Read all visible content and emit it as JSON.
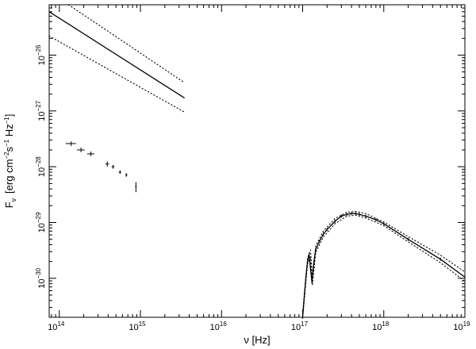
{
  "chart_data": {
    "type": "scatter",
    "xlabel": "ν [Hz]",
    "ylabel": "F_ν [erg cm⁻² s⁻¹ Hz⁻¹]",
    "ylabel_parts": {
      "main": "F",
      "sub": "ν",
      "unit": "[erg cm",
      "e1": "−2",
      "mid": "s",
      "e2": "−1",
      "mid2": " Hz",
      "e3": "−1",
      "end": "]"
    },
    "x_scale": "log",
    "y_scale": "log",
    "xlim": [
      75000000000000.0,
      1e+19
    ],
    "ylim": [
      2e-31,
      8e-26
    ],
    "x_ticks": [
      {
        "value": 100000000000000.0,
        "base": "10",
        "exp": "14"
      },
      {
        "value": 1000000000000000.0,
        "base": "10",
        "exp": "15"
      },
      {
        "value": 1e+16,
        "base": "10",
        "exp": "16"
      },
      {
        "value": 1e+17,
        "base": "10",
        "exp": "17"
      },
      {
        "value": 1e+18,
        "base": "10",
        "exp": "18"
      },
      {
        "value": 1e+19,
        "base": "10",
        "exp": "19"
      }
    ],
    "y_ticks": [
      {
        "value": 1e-30,
        "base": "10",
        "exp": "−30"
      },
      {
        "value": 1e-29,
        "base": "10",
        "exp": "−29"
      },
      {
        "value": 1e-28,
        "base": "10",
        "exp": "−28"
      },
      {
        "value": 1e-27,
        "base": "10",
        "exp": "−27"
      },
      {
        "value": 1e-26,
        "base": "10",
        "exp": "−26"
      }
    ],
    "grid": false,
    "series": [
      {
        "style": "solid",
        "x": [
          75000000000000.0,
          3500000000000000.0
        ],
        "y": [
          6e-26,
          1.7e-27
        ]
      },
      {
        "style": "dotted",
        "x": [
          130000000000000.0,
          3500000000000000.0
        ],
        "y": [
          8e-26,
          3.2e-27
        ]
      },
      {
        "style": "dotted",
        "x": [
          75000000000000.0,
          3500000000000000.0
        ],
        "y": [
          2.2e-26,
          9.5e-28
        ]
      },
      {
        "style": "errorbar",
        "points": [
          {
            "x": 140000000000000.0,
            "y": 2.6e-28,
            "xerr": [
              120000000000000.0,
              160000000000000.0
            ],
            "yerr": [
              2.35e-28,
              2.85e-28
            ]
          },
          {
            "x": 185000000000000.0,
            "y": 2e-28,
            "xerr": [
              165000000000000.0,
              205000000000000.0
            ],
            "yerr": [
              1.82e-28,
              2.2e-28
            ]
          },
          {
            "x": 245000000000000.0,
            "y": 1.7e-28,
            "xerr": [
              220000000000000.0,
              270000000000000.0
            ],
            "yerr": [
              1.55e-28,
              1.87e-28
            ]
          },
          {
            "x": 390000000000000.0,
            "y": 1.12e-28,
            "xerr": [
              370000000000000.0,
              410000000000000.0
            ],
            "yerr": [
              1e-28,
              1.24e-28
            ]
          },
          {
            "x": 460000000000000.0,
            "y": 1e-28,
            "xerr": [
              440000000000000.0,
              480000000000000.0
            ],
            "yerr": [
              9.2e-29,
              1.08e-28
            ]
          },
          {
            "x": 560000000000000.0,
            "y": 8e-29,
            "xerr": [
              540000000000000.0,
              580000000000000.0
            ],
            "yerr": [
              7.4e-29,
              8.6e-29
            ]
          },
          {
            "x": 670000000000000.0,
            "y": 7.1e-29,
            "xerr": [
              650000000000000.0,
              690000000000000.0
            ],
            "yerr": [
              6.6e-29,
              7.7e-29
            ]
          },
          {
            "x": 880000000000000.0,
            "y": 4.4e-29,
            "xerr": [
              860000000000000.0,
              900000000000000.0
            ],
            "yerr": [
              3.5e-29,
              5.3e-29
            ]
          }
        ]
      },
      {
        "style": "solid",
        "x": [
          1e+17,
          1.05e+17,
          1.1e+17,
          1.15e+17,
          1.2e+17,
          1.25e+17,
          1.3e+17,
          1.37e+17,
          1.45e+17,
          1.6e+17,
          1.8e+17,
          2e+17,
          2.5e+17,
          3e+17,
          3.5e+17,
          4e+17,
          4.5e+17,
          5e+17,
          6e+17,
          8e+17,
          1e+18,
          2e+18,
          5e+18,
          1e+19
        ],
        "y": [
          2e-31,
          5e-31,
          1.1e-30,
          2e-30,
          2.7e-30,
          1.5e-30,
          8.5e-31,
          1.9e-30,
          3.3e-30,
          4.5e-30,
          6.2e-30,
          7.5e-30,
          1.05e-29,
          1.3e-29,
          1.4e-29,
          1.45e-29,
          1.45e-29,
          1.4e-29,
          1.3e-29,
          1.12e-29,
          9.5e-30,
          5e-30,
          2.2e-30,
          1.05e-30
        ]
      },
      {
        "style": "dotted",
        "x": [
          1e+17,
          1.15e+17,
          1.25e+17,
          1.32e+17,
          1.45e+17,
          1.8e+17,
          2.5e+17,
          3.5e+17,
          4.5e+17,
          6e+17,
          1e+18,
          2e+18,
          5e+18,
          1e+19
        ],
        "y": [
          2.4e-31,
          2.3e-30,
          3.2e-30,
          1e-30,
          3.8e-30,
          7e-30,
          1.18e-29,
          1.52e-29,
          1.58e-29,
          1.45e-29,
          1.02e-29,
          5.6e-30,
          2.6e-30,
          1.3e-30
        ]
      },
      {
        "style": "dotted",
        "x": [
          1e+17,
          1.15e+17,
          1.25e+17,
          1.32e+17,
          1.45e+17,
          1.8e+17,
          2.5e+17,
          3.5e+17,
          4.5e+17,
          6e+17,
          1e+18,
          2e+18,
          5e+18,
          1e+19
        ],
        "y": [
          2e-31,
          1.8e-30,
          2.4e-30,
          7.5e-31,
          2.9e-30,
          5.5e-30,
          9.5e-30,
          1.3e-29,
          1.35e-29,
          1.2e-29,
          8.8e-30,
          4.5e-30,
          1.9e-30,
          8.8e-31
        ]
      }
    ]
  }
}
